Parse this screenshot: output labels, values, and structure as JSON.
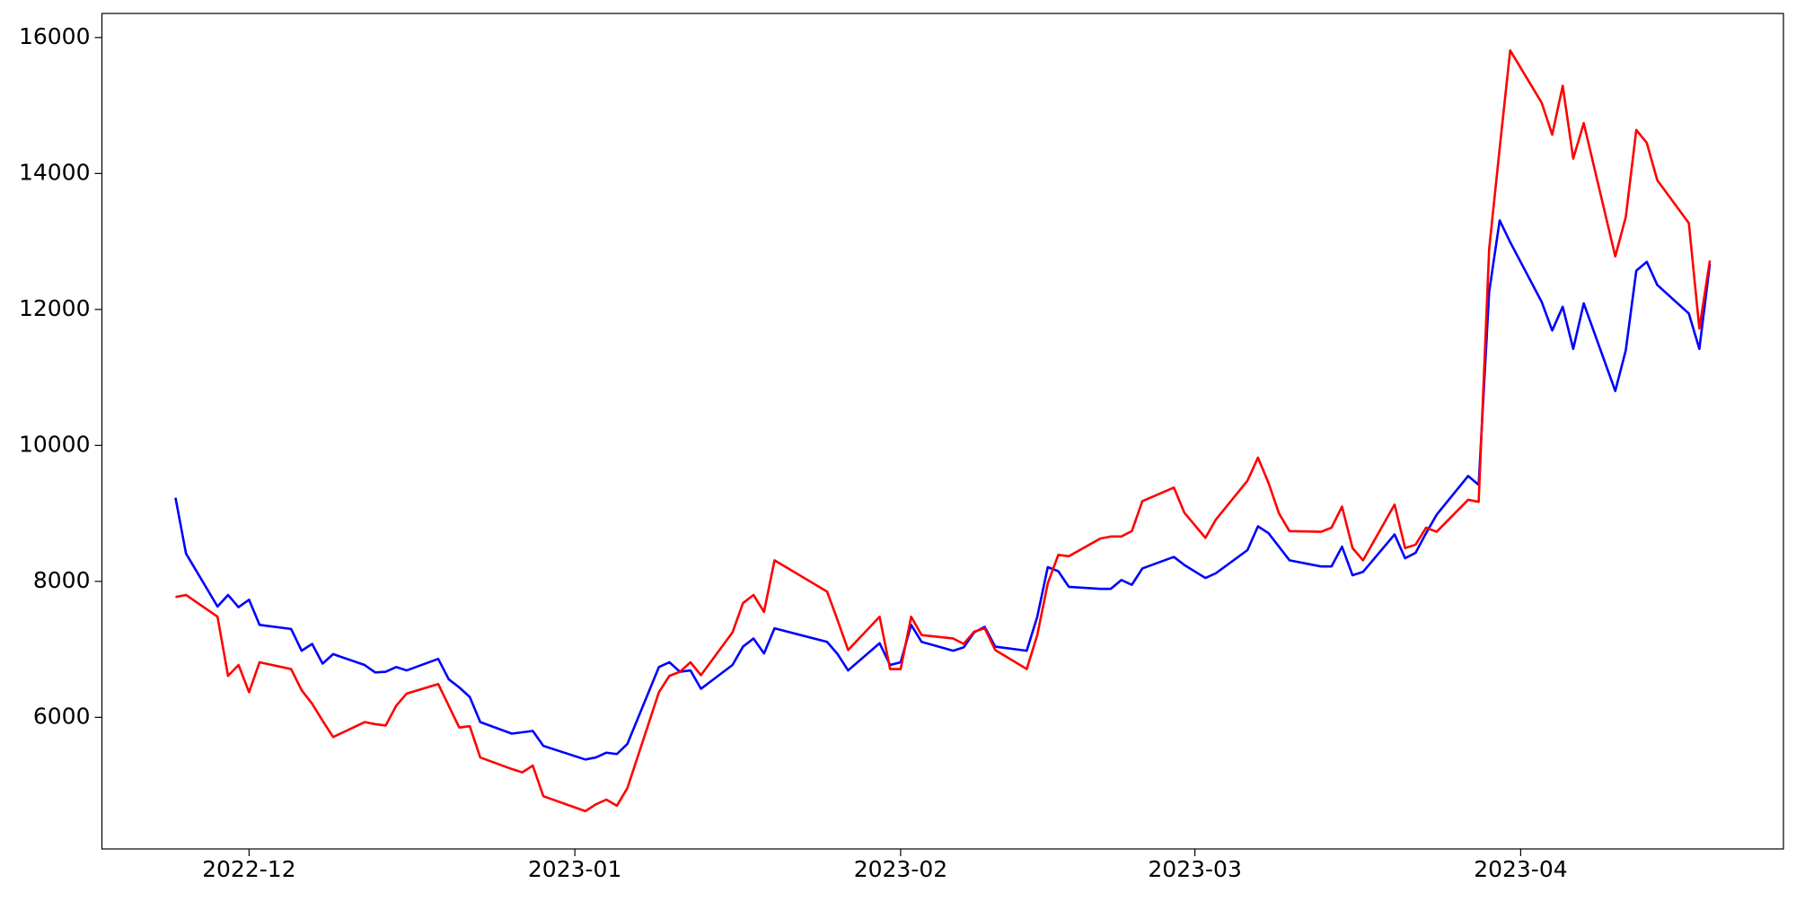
{
  "chart_data": {
    "type": "line",
    "x": [
      "2022-11-24",
      "2022-11-25",
      "2022-11-28",
      "2022-11-29",
      "2022-11-30",
      "2022-12-01",
      "2022-12-02",
      "2022-12-05",
      "2022-12-06",
      "2022-12-07",
      "2022-12-08",
      "2022-12-09",
      "2022-12-12",
      "2022-12-13",
      "2022-12-14",
      "2022-12-15",
      "2022-12-16",
      "2022-12-19",
      "2022-12-20",
      "2022-12-21",
      "2022-12-22",
      "2022-12-23",
      "2022-12-26",
      "2022-12-27",
      "2022-12-28",
      "2022-12-29",
      "2023-01-02",
      "2023-01-03",
      "2023-01-04",
      "2023-01-05",
      "2023-01-06",
      "2023-01-09",
      "2023-01-10",
      "2023-01-11",
      "2023-01-12",
      "2023-01-13",
      "2023-01-16",
      "2023-01-17",
      "2023-01-18",
      "2023-01-19",
      "2023-01-20",
      "2023-01-25",
      "2023-01-26",
      "2023-01-27",
      "2023-01-30",
      "2023-01-31",
      "2023-02-01",
      "2023-02-02",
      "2023-02-03",
      "2023-02-06",
      "2023-02-07",
      "2023-02-08",
      "2023-02-09",
      "2023-02-10",
      "2023-02-13",
      "2023-02-14",
      "2023-02-15",
      "2023-02-16",
      "2023-02-17",
      "2023-02-20",
      "2023-02-21",
      "2023-02-22",
      "2023-02-23",
      "2023-02-24",
      "2023-02-27",
      "2023-02-28",
      "2023-03-02",
      "2023-03-03",
      "2023-03-06",
      "2023-03-07",
      "2023-03-08",
      "2023-03-09",
      "2023-03-10",
      "2023-03-13",
      "2023-03-14",
      "2023-03-15",
      "2023-03-16",
      "2023-03-17",
      "2023-03-20",
      "2023-03-21",
      "2023-03-22",
      "2023-03-23",
      "2023-03-24",
      "2023-03-27",
      "2023-03-28",
      "2023-03-29",
      "2023-03-30",
      "2023-03-31",
      "2023-04-03",
      "2023-04-04",
      "2023-04-05",
      "2023-04-06",
      "2023-04-07",
      "2023-04-10",
      "2023-04-11",
      "2023-04-12",
      "2023-04-13",
      "2023-04-14",
      "2023-04-17",
      "2023-04-18",
      "2023-04-19"
    ],
    "series": [
      {
        "color": "blue",
        "values": [
          9230,
          8410,
          7630,
          7800,
          7620,
          7730,
          7360,
          7300,
          6980,
          7080,
          6790,
          6930,
          6770,
          6660,
          6670,
          6740,
          6690,
          6860,
          6560,
          6440,
          6300,
          5930,
          5760,
          5780,
          5800,
          5580,
          5380,
          5410,
          5480,
          5460,
          5610,
          6740,
          6810,
          6670,
          6690,
          6420,
          6770,
          7040,
          7160,
          6940,
          7310,
          7110,
          6930,
          6690,
          7090,
          6770,
          6810,
          7360,
          7110,
          6980,
          7030,
          7250,
          7330,
          7040,
          6980,
          7480,
          8210,
          8150,
          7920,
          7890,
          7890,
          8020,
          7950,
          8190,
          8360,
          8240,
          8050,
          8120,
          8460,
          8810,
          8710,
          8510,
          8310,
          8220,
          8220,
          8510,
          8090,
          8140,
          8690,
          8340,
          8420,
          8710,
          8980,
          9550,
          9420,
          12260,
          13310,
          12990,
          12110,
          11690,
          12040,
          11420,
          12090,
          10800,
          11400,
          12570,
          12700,
          12360,
          11940,
          11420,
          12670
        ]
      },
      {
        "color": "red",
        "values": [
          7770,
          7800,
          7480,
          6610,
          6770,
          6370,
          6810,
          6710,
          6400,
          6200,
          5950,
          5710,
          5930,
          5900,
          5880,
          6170,
          6350,
          6490,
          6170,
          5850,
          5870,
          5410,
          5240,
          5190,
          5290,
          4840,
          4620,
          4720,
          4790,
          4700,
          4960,
          6370,
          6610,
          6670,
          6810,
          6620,
          7250,
          7680,
          7800,
          7550,
          8310,
          7850,
          7430,
          6990,
          7480,
          6710,
          6710,
          7480,
          7210,
          7160,
          7080,
          7260,
          7310,
          6990,
          6710,
          7210,
          7970,
          8390,
          8370,
          8630,
          8660,
          8660,
          8740,
          9180,
          9380,
          9010,
          8640,
          8910,
          9480,
          9820,
          9450,
          9000,
          8740,
          8730,
          8790,
          9100,
          8490,
          8310,
          9130,
          8490,
          8540,
          8790,
          8730,
          9200,
          9170,
          12890,
          14370,
          15810,
          15040,
          14570,
          15290,
          14220,
          14740,
          12780,
          13360,
          14640,
          14450,
          13900,
          13270,
          11720,
          12720
        ]
      }
    ],
    "xlim": [
      "2022-11-17",
      "2023-04-26"
    ],
    "xticks": [
      {
        "value": "2022-12-01",
        "label": "2022-12"
      },
      {
        "value": "2023-01-01",
        "label": "2023-01"
      },
      {
        "value": "2023-02-01",
        "label": "2023-02"
      },
      {
        "value": "2023-03-01",
        "label": "2023-03"
      },
      {
        "value": "2023-04-01",
        "label": "2023-04"
      }
    ],
    "ylim": [
      4064,
      16354
    ],
    "yticks": [
      6000,
      8000,
      10000,
      12000,
      14000,
      16000
    ],
    "grid": false
  }
}
